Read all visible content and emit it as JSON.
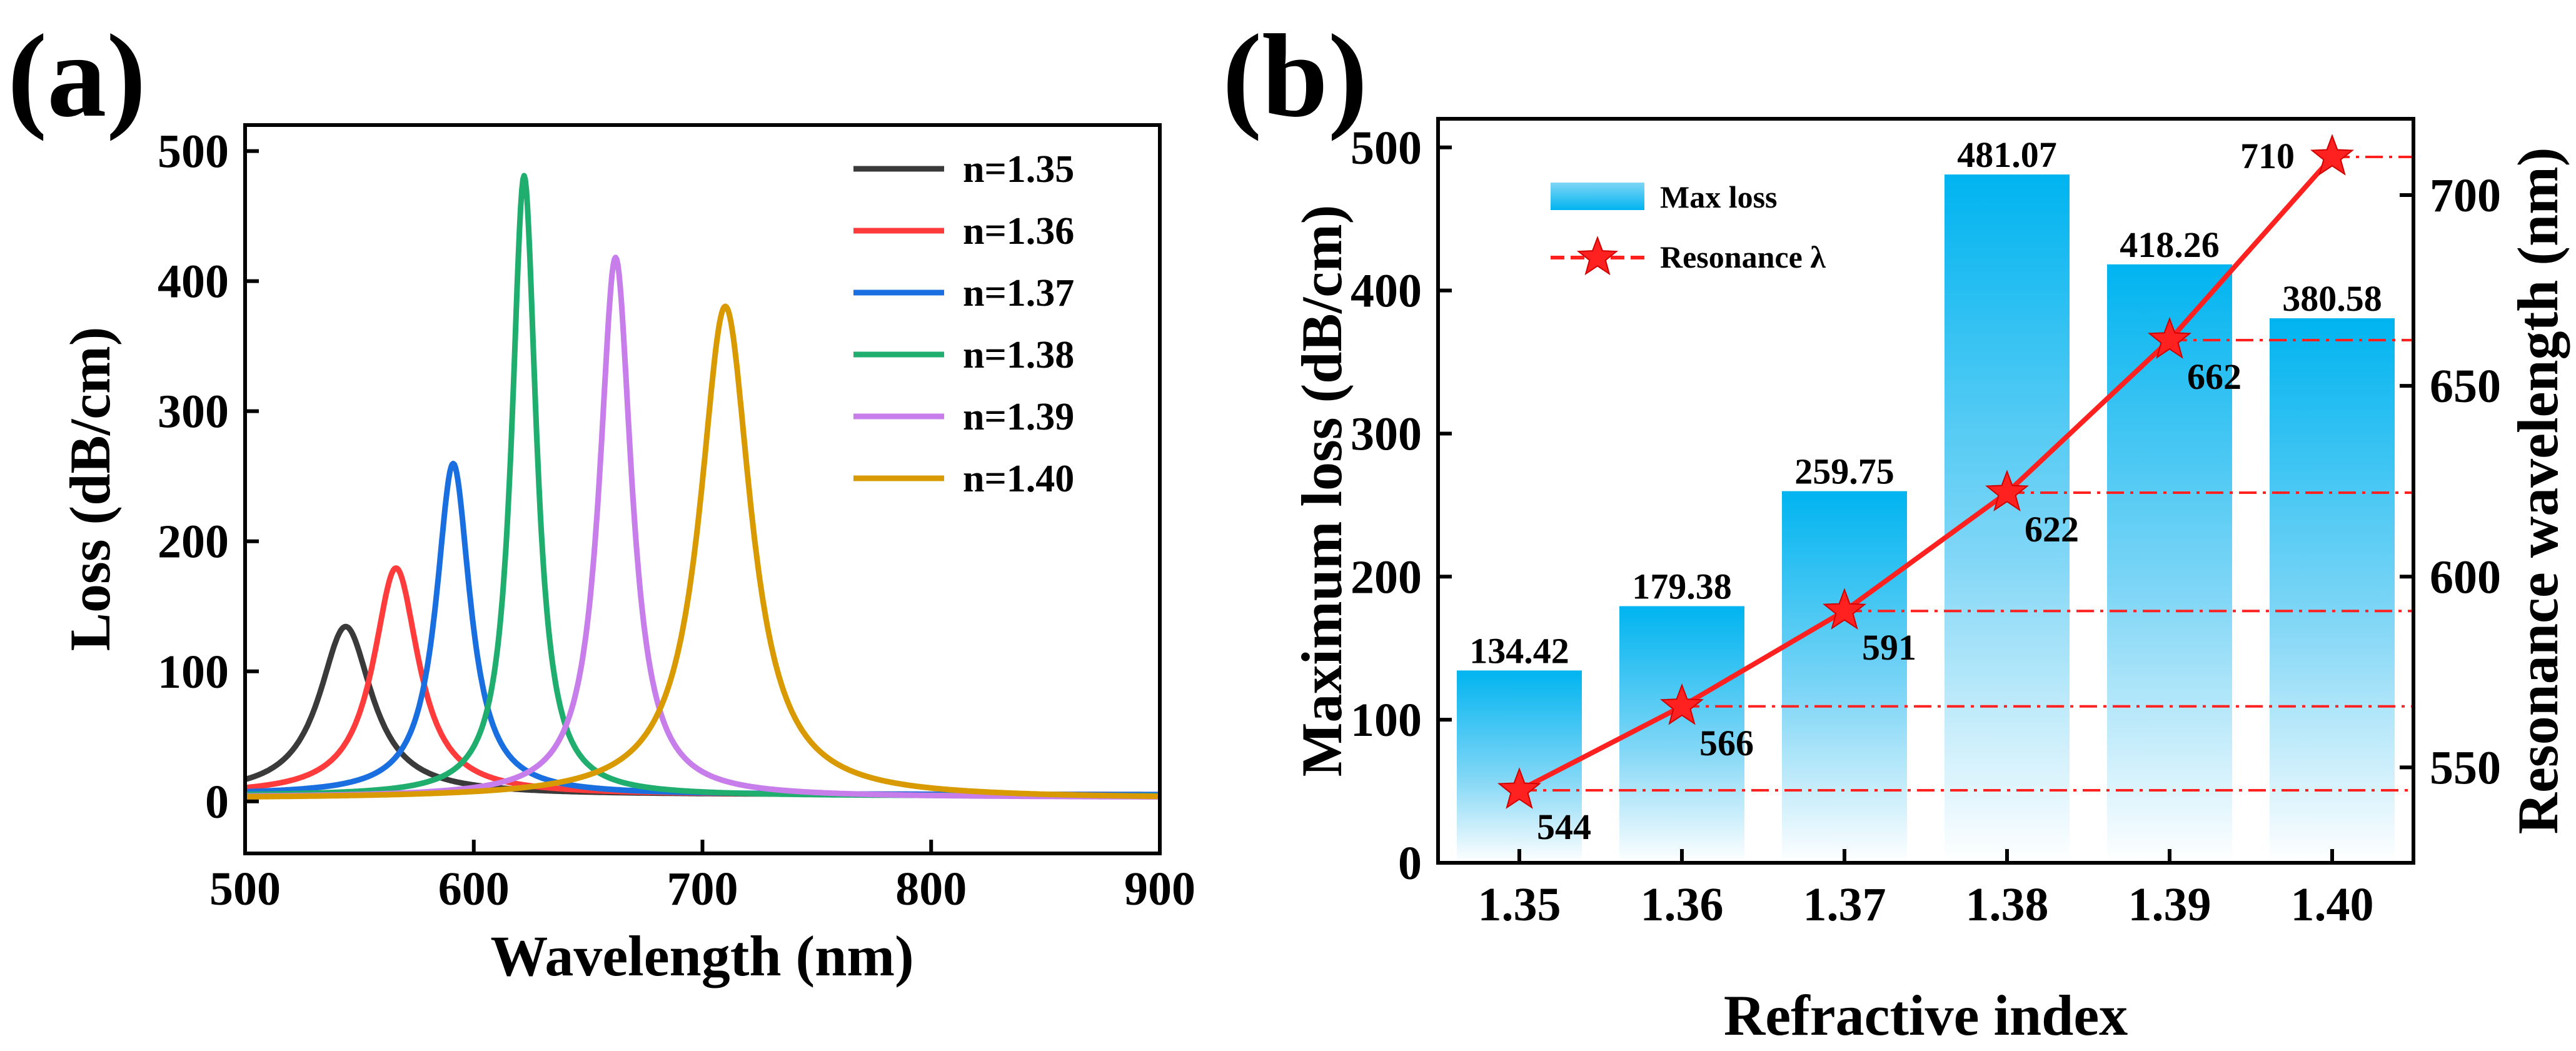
{
  "chart_data": [
    {
      "panel": "(a)",
      "type": "line",
      "xlabel": "Wavelength (nm)",
      "ylabel": "Loss (dB/cm)",
      "xlim": [
        500,
        900
      ],
      "ylim": [
        -40,
        520
      ],
      "xticks": [
        500,
        600,
        700,
        800,
        900
      ],
      "yticks": [
        0,
        100,
        200,
        300,
        400,
        500
      ],
      "legend_position": "top-right",
      "series": [
        {
          "name": "n=1.35",
          "color": "#3a3a3a",
          "peak_wavelength": 544,
          "peak_loss": 134.42,
          "width": 28,
          "baseline": 5
        },
        {
          "name": "n=1.36",
          "color": "#ff3b3b",
          "peak_wavelength": 566,
          "peak_loss": 179.38,
          "width": 24,
          "baseline": 5
        },
        {
          "name": "n=1.37",
          "color": "#1a6fe0",
          "peak_wavelength": 591,
          "peak_loss": 259.75,
          "width": 18,
          "baseline": 5
        },
        {
          "name": "n=1.38",
          "color": "#1fae6e",
          "peak_wavelength": 622,
          "peak_loss": 481.07,
          "width": 13,
          "baseline": 4
        },
        {
          "name": "n=1.39",
          "color": "#c77dea",
          "peak_wavelength": 662,
          "peak_loss": 418.26,
          "width": 17,
          "baseline": 3
        },
        {
          "name": "n=1.40",
          "color": "#d99a00",
          "peak_wavelength": 710,
          "peak_loss": 380.58,
          "width": 27,
          "baseline": 2
        }
      ]
    },
    {
      "panel": "(b)",
      "type": "bar",
      "xlabel": "Refractive index",
      "ylabel": "Maximum loss (dB/cm)",
      "y2label": "Resonance wavelength (nm)",
      "categories": [
        "1.35",
        "1.36",
        "1.37",
        "1.38",
        "1.39",
        "1.40"
      ],
      "ylim": [
        0,
        520
      ],
      "yticks": [
        0,
        100,
        200,
        300,
        400,
        500
      ],
      "y2lim": [
        525,
        720
      ],
      "y2ticks": [
        550,
        600,
        650,
        700
      ],
      "legend_position": "top-left",
      "series": [
        {
          "name": "Max loss",
          "type": "bar",
          "axis": "left",
          "color": "#00b4f0",
          "values": [
            134.42,
            179.38,
            259.75,
            481.07,
            418.26,
            380.58
          ],
          "labels": [
            "134.42",
            "179.38",
            "259.75",
            "481.07",
            "418.26",
            "380.58"
          ]
        },
        {
          "name": "Resonance λ",
          "type": "line",
          "axis": "right",
          "color": "#ff2020",
          "values": [
            544,
            566,
            591,
            622,
            662,
            710
          ],
          "labels": [
            "544",
            "566",
            "591",
            "622",
            "662",
            "710"
          ]
        }
      ]
    }
  ]
}
